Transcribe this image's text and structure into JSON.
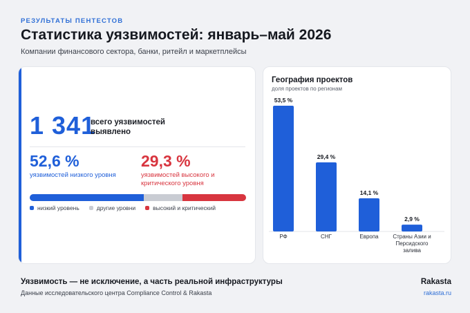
{
  "header": {
    "eyebrow": "РЕЗУЛЬТАТЫ ПЕНТЕСТОВ",
    "title": "Статистика уязвимостей: январь–май 2026",
    "subtitle": "Компании финансового сектора, банки, ритейл и маркетплейсы"
  },
  "summary": {
    "total_value": "1 341",
    "total_label": "всего уязвимостей выявлено",
    "low_value": "52,6 %",
    "low_label": "уязвимостей низкого уровня",
    "high_value": "29,3 %",
    "high_label": "уязвимостей высокого и критического уровня",
    "distribution": [
      {
        "name": "низкий уровень",
        "share": 52.6,
        "color": "#1f5fd9"
      },
      {
        "name": "другие уровни",
        "share": 18.1,
        "color": "#c9ccd3"
      },
      {
        "name": "высокий и критический",
        "share": 29.3,
        "color": "#d8353f"
      }
    ]
  },
  "chart_data": {
    "type": "bar",
    "title": "География проектов",
    "subtitle": "доля проектов по регионам",
    "categories": [
      "РФ",
      "СНГ",
      "Европа",
      "Страны Азии и Персидского залива"
    ],
    "values": [
      53.5,
      29.4,
      14.1,
      2.9
    ],
    "value_labels": [
      "53,5 %",
      "29,4 %",
      "14,1 %",
      "2,9 %"
    ],
    "ylim": [
      0,
      53.5
    ],
    "bar_color": "#1f5fd9",
    "grid": false,
    "legend": "none"
  },
  "footer": {
    "title": "Уязвимость — не исключение, а часть реальной инфраструктуры",
    "source": "Данные исследовательского центра Compliance Control & Rakasta",
    "brand": "Rakasta",
    "url": "rakasta.ru"
  }
}
